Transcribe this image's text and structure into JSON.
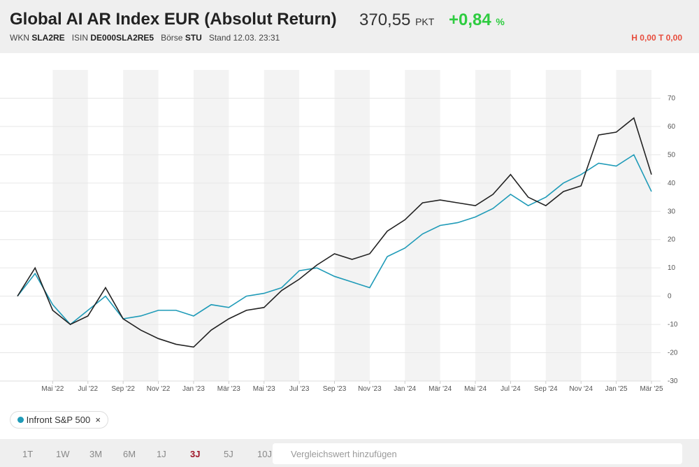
{
  "header": {
    "price": "370,55",
    "unit": "PKT",
    "change": "+0,84",
    "change_unit": "%",
    "wkn_label": "WKN",
    "wkn": "SLA2RE",
    "isin_label": "ISIN",
    "isin": "DE000SLA2RE5",
    "exchange_label": "Börse",
    "exchange": "STU",
    "stand": "Stand 12.03. 23:31",
    "high_low": "H 0,00 T 0,00"
  },
  "chart_data": {
    "type": "line",
    "title": "Global AI AR Index EUR (Absolut Return)",
    "x": [
      "2022-03",
      "2022-04",
      "2022-05",
      "2022-06",
      "2022-07",
      "2022-08",
      "2022-09",
      "2022-10",
      "2022-11",
      "2022-12",
      "2023-01",
      "2023-02",
      "2023-03",
      "2023-04",
      "2023-05",
      "2023-06",
      "2023-07",
      "2023-08",
      "2023-09",
      "2023-10",
      "2023-11",
      "2023-12",
      "2024-01",
      "2024-02",
      "2024-03",
      "2024-04",
      "2024-05",
      "2024-06",
      "2024-07",
      "2024-08",
      "2024-09",
      "2024-10",
      "2024-11",
      "2024-12",
      "2025-01",
      "2025-02",
      "2025-03"
    ],
    "series": [
      {
        "color": "#222222",
        "values": [
          0,
          10,
          -5,
          -10,
          -7,
          3,
          -8,
          -12,
          -15,
          -17,
          -18,
          -12,
          -8,
          -5,
          -4,
          2,
          6,
          11,
          15,
          13,
          15,
          23,
          27,
          33,
          34,
          33,
          32,
          36,
          43,
          35,
          32,
          37,
          39,
          57,
          58,
          63,
          43
        ]
      },
      {
        "name": "Infront S&P 500",
        "color": "#1f9bb8",
        "values": [
          0,
          8,
          -3,
          -10,
          -5,
          0,
          -8,
          -7,
          -5,
          -5,
          -7,
          -3,
          -4,
          0,
          1,
          3,
          9,
          10,
          7,
          5,
          3,
          14,
          17,
          22,
          25,
          26,
          28,
          31,
          36,
          32,
          35,
          40,
          43,
          47,
          46,
          50,
          37
        ]
      }
    ],
    "xlim": [
      "2022-03",
      "2025-03"
    ],
    "xticks": [
      {
        "value": "2022-05",
        "label": "Mai '22"
      },
      {
        "value": "2022-07",
        "label": "Jul '22"
      },
      {
        "value": "2022-09",
        "label": "Sep '22"
      },
      {
        "value": "2022-11",
        "label": "Nov '22"
      },
      {
        "value": "2023-01",
        "label": "Jan '23"
      },
      {
        "value": "2023-03",
        "label": "Mär '23"
      },
      {
        "value": "2023-05",
        "label": "Mai '23"
      },
      {
        "value": "2023-07",
        "label": "Jul '23"
      },
      {
        "value": "2023-09",
        "label": "Sep '23"
      },
      {
        "value": "2023-11",
        "label": "Nov '23"
      },
      {
        "value": "2024-01",
        "label": "Jan '24"
      },
      {
        "value": "2024-03",
        "label": "Mär '24"
      },
      {
        "value": "2024-05",
        "label": "Mai '24"
      },
      {
        "value": "2024-07",
        "label": "Jul '24"
      },
      {
        "value": "2024-09",
        "label": "Sep '24"
      },
      {
        "value": "2024-11",
        "label": "Nov '24"
      },
      {
        "value": "2025-01",
        "label": "Jan '25"
      },
      {
        "value": "2025-03",
        "label": "Mär '25"
      }
    ],
    "ylim": [
      -30,
      80
    ],
    "yticks": [
      -30,
      -20,
      -10,
      0,
      10,
      20,
      30,
      40,
      50,
      60,
      70
    ],
    "grid": true
  },
  "ranges": [
    "1T",
    "1W",
    "3M",
    "6M",
    "1J",
    "3J",
    "5J",
    "10J"
  ],
  "active_range": "3J",
  "search_placeholder": "Vergleichswert hinzufügen"
}
